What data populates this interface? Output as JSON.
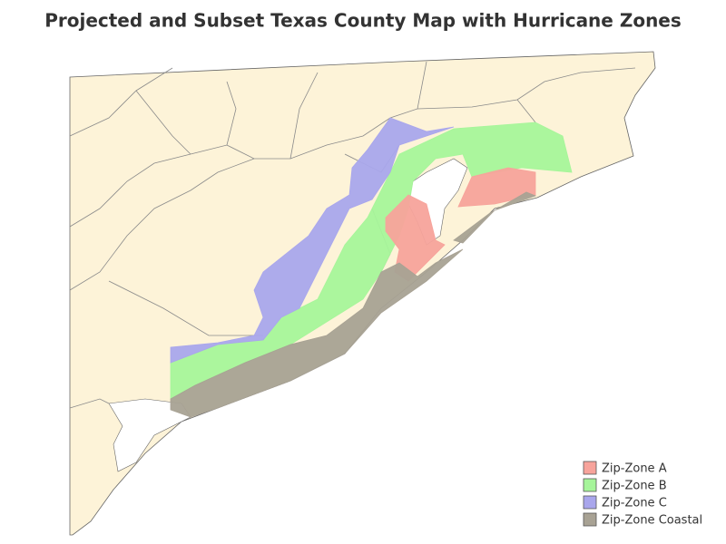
{
  "title": "Projected and Subset Texas County Map with Hurricane Zones",
  "legend": {
    "items": [
      {
        "label": "Zip-Zone A",
        "color": "#f7a39b"
      },
      {
        "label": "Zip-Zone B",
        "color": "#a6f59a"
      },
      {
        "label": "Zip-Zone C",
        "color": "#a9a6ec"
      },
      {
        "label": "Zip-Zone Coastal",
        "color": "#a8a294"
      }
    ]
  }
}
